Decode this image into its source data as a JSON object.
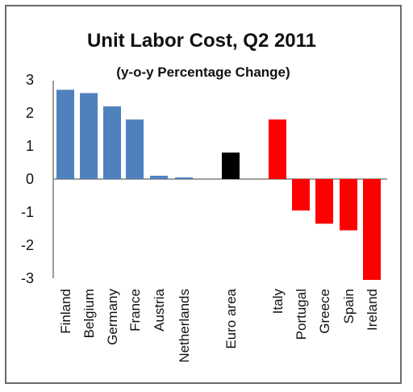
{
  "chart_data": {
    "type": "bar",
    "title": "Unit Labor Cost, Q2 2011",
    "subtitle": "(y-o-y Percentage Change)",
    "xlabel": "",
    "ylabel": "",
    "ylim": [
      -3,
      3
    ],
    "yticks": [
      "3",
      "2",
      "1",
      "0",
      "-1",
      "-2",
      "-3"
    ],
    "ytick_values": [
      3,
      2,
      1,
      0,
      -1,
      -2,
      -3
    ],
    "categories": [
      "Finland",
      "Belgium",
      "Germany",
      "France",
      "Austria",
      "Netherlands",
      "Euro area",
      "Italy",
      "Portugal",
      "Greece",
      "Spain",
      "Ireland"
    ],
    "values": [
      2.7,
      2.6,
      2.2,
      1.8,
      0.1,
      0.05,
      0.8,
      1.8,
      -0.95,
      -1.35,
      -1.55,
      -3.05
    ],
    "colors": [
      "#4f81bd",
      "#4f81bd",
      "#4f81bd",
      "#4f81bd",
      "#4f81bd",
      "#4f81bd",
      "#000000",
      "#ff0000",
      "#ff0000",
      "#ff0000",
      "#ff0000",
      "#ff0000"
    ],
    "legend": "none",
    "grid": false
  }
}
